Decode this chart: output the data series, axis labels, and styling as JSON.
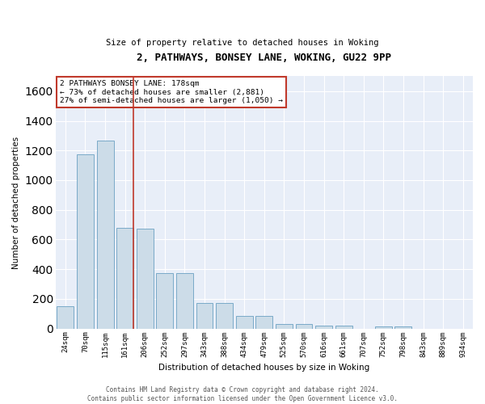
{
  "title": "2, PATHWAYS, BONSEY LANE, WOKING, GU22 9PP",
  "subtitle": "Size of property relative to detached houses in Woking",
  "xlabel": "Distribution of detached houses by size in Woking",
  "ylabel": "Number of detached properties",
  "bar_color": "#ccdce8",
  "bar_edge_color": "#7aaac8",
  "background_color": "#e8eef8",
  "grid_color": "white",
  "categories": [
    "24sqm",
    "70sqm",
    "115sqm",
    "161sqm",
    "206sqm",
    "252sqm",
    "297sqm",
    "343sqm",
    "388sqm",
    "434sqm",
    "479sqm",
    "525sqm",
    "570sqm",
    "616sqm",
    "661sqm",
    "707sqm",
    "752sqm",
    "798sqm",
    "843sqm",
    "889sqm",
    "934sqm"
  ],
  "values": [
    150,
    1175,
    1265,
    680,
    675,
    375,
    375,
    170,
    170,
    85,
    85,
    30,
    30,
    22,
    22,
    0,
    13,
    13,
    0,
    0,
    0
  ],
  "vline_color": "#c0392b",
  "vline_pos": 3.42,
  "annotation_text": "2 PATHWAYS BONSEY LANE: 178sqm\n← 73% of detached houses are smaller (2,881)\n27% of semi-detached houses are larger (1,050) →",
  "annotation_box_color": "white",
  "annotation_box_edge_color": "#c0392b",
  "ylim": [
    0,
    1700
  ],
  "yticks": [
    0,
    200,
    400,
    600,
    800,
    1000,
    1200,
    1400,
    1600
  ],
  "footer_line1": "Contains HM Land Registry data © Crown copyright and database right 2024.",
  "footer_line2": "Contains public sector information licensed under the Open Government Licence v3.0."
}
